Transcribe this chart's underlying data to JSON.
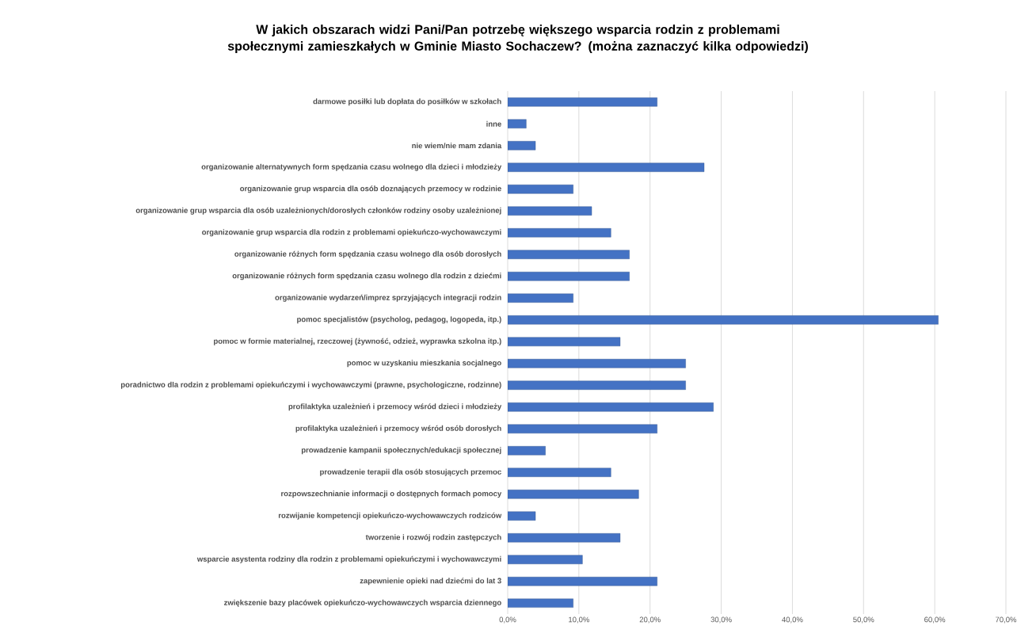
{
  "chart_data": {
    "type": "bar",
    "orientation": "horizontal",
    "title": "W jakich obszarach widzi Pani/Pan  potrzebę większego wsparcia rodzin z problemami społecznymi zamieszkałych w Gminie Miasto Sochaczew? (można zaznaczyć kilka odpowiedzi)",
    "categories": [
      "darmowe posiłki lub dopłata do posiłków w szkołach",
      "inne",
      "nie wiem/nie mam zdania",
      "organizowanie alternatywnych form spędzania czasu wolnego dla dzieci i młodzieży",
      "organizowanie grup wsparcia dla osób doznających przemocy w rodzinie",
      "organizowanie grup wsparcia dla osób uzależnionych/dorosłych członków rodziny osoby uzależnionej",
      "organizowanie grup wsparcia dla rodzin z problemami opiekuńczo-wychowawczymi",
      "organizowanie różnych form spędzania czasu wolnego dla osób dorosłych",
      "organizowanie różnych form spędzania czasu wolnego dla rodzin z dziećmi",
      "organizowanie wydarzeń/imprez sprzyjających integracji rodzin",
      "pomoc specjalistów (psycholog, pedagog, logopeda, itp.)",
      "pomoc w formie materialnej, rzeczowej (żywność, odzież, wyprawka szkolna itp.)",
      "pomoc w uzyskaniu mieszkania socjalnego",
      "poradnictwo dla rodzin z problemami opiekuńczymi i wychowawczymi (prawne, psychologiczne, rodzinne)",
      "profilaktyka uzależnień i przemocy wśród dzieci i młodzieży",
      "profilaktyka uzależnień i przemocy wśród osób dorosłych",
      "prowadzenie kampanii społecznych/edukacji społecznej",
      "prowadzenie terapii dla osób stosujących przemoc",
      "rozpowszechnianie informacji o dostępnych formach pomocy",
      "rozwijanie kompetencji opiekuńczo-wychowawczych rodziców",
      "tworzenie i rozwój rodzin zastępczych",
      "wsparcie asystenta rodziny dla rodzin z problemami opiekuńczymi i wychowawczymi",
      "zapewnienie opieki nad dziećmi do lat 3",
      "zwiększenie bazy placówek opiekuńczo-wychowawczych wsparcia dziennego"
    ],
    "values": [
      21.0,
      2.6,
      3.9,
      27.6,
      9.2,
      11.8,
      14.5,
      17.1,
      17.1,
      9.2,
      60.5,
      15.8,
      25.0,
      25.0,
      28.9,
      21.0,
      5.3,
      14.5,
      18.4,
      3.9,
      15.8,
      10.5,
      21.0,
      9.2
    ],
    "color": "#4472c4",
    "xlim": [
      0,
      70
    ],
    "xticks": [
      {
        "value": 0,
        "label": "0,0%"
      },
      {
        "value": 10,
        "label": "10,0%"
      },
      {
        "value": 20,
        "label": "20,0%"
      },
      {
        "value": 30,
        "label": "30,0%"
      },
      {
        "value": 40,
        "label": "40,0%"
      },
      {
        "value": 50,
        "label": "50,0%"
      },
      {
        "value": 60,
        "label": "60,0%"
      },
      {
        "value": 70,
        "label": "70,0%"
      }
    ],
    "grid": "x"
  }
}
